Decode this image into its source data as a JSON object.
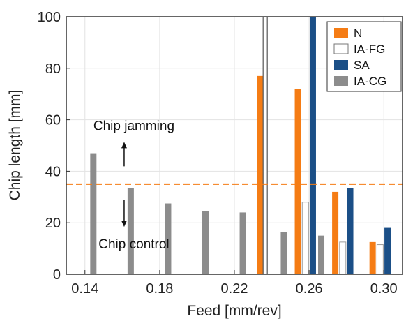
{
  "chart_data": {
    "type": "bar",
    "xlabel": "Feed [mm/rev]",
    "ylabel": "Chip length [mm]",
    "xlim": [
      0.13,
      0.31
    ],
    "ylim": [
      0,
      100
    ],
    "yticks": [
      0,
      20,
      40,
      60,
      80,
      100
    ],
    "xticks": [
      0.14,
      0.18,
      0.22,
      0.26,
      0.3
    ],
    "ytick_labels": [
      "0",
      "20",
      "40",
      "60",
      "80",
      "100"
    ],
    "xtick_labels": [
      "0.14",
      "0.18",
      "0.22",
      "0.26",
      "0.30"
    ],
    "grid": true,
    "legend_position": "top-right",
    "series": [
      {
        "name": "N",
        "color": "#f57c14",
        "outline": false,
        "x": [
          0.234,
          0.254,
          0.274,
          0.294
        ],
        "values": [
          77,
          72,
          32,
          12.5
        ]
      },
      {
        "name": "IA-FG",
        "color": "#ffffff",
        "outline": true,
        "x": [
          0.258,
          0.278,
          0.298
        ],
        "values": [
          28,
          12.5,
          11.5
        ]
      },
      {
        "name": "SA",
        "color": "#1b4f87",
        "outline": false,
        "x": [
          0.262,
          0.282,
          0.302
        ],
        "values": [
          100,
          33.5,
          18
        ]
      },
      {
        "name": "IA-CG",
        "color": "#8c8c8c",
        "outline": false,
        "x": [
          0.1445,
          0.1645,
          0.1845,
          0.2045,
          0.2245,
          0.2465,
          0.2665
        ],
        "values": [
          47,
          33.5,
          27.5,
          24.5,
          24,
          16.5,
          15
        ]
      }
    ],
    "threshold": {
      "value": 35,
      "color": "#f57c14"
    },
    "separator_x": 0.2365,
    "annotations": [
      {
        "text": "Chip jamming",
        "x": 0.1565,
        "y": 56,
        "arrow": "up"
      },
      {
        "text": "Chip control",
        "x": 0.1565,
        "y": 10,
        "arrow": "down"
      }
    ]
  }
}
